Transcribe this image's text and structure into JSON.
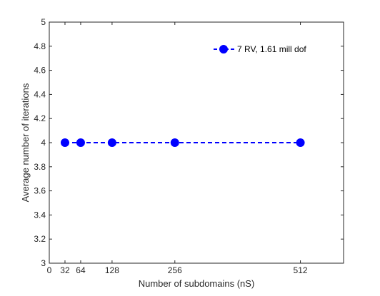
{
  "chart_data": {
    "type": "line",
    "xlabel": "Number of subdomains (nS)",
    "ylabel": "Average number of iterations",
    "xlim": [
      0,
      600
    ],
    "ylim": [
      3,
      5
    ],
    "x_ticks": [
      0,
      32,
      64,
      128,
      256,
      512
    ],
    "x_tick_labels": [
      "0",
      "32",
      "64",
      "128",
      "256",
      "512"
    ],
    "y_ticks": [
      3,
      3.2,
      3.4,
      3.6,
      3.8,
      4,
      4.2,
      4.4,
      4.6,
      4.8,
      5
    ],
    "y_tick_labels": [
      "3",
      "3.2",
      "3.4",
      "3.6",
      "3.8",
      "4",
      "4.2",
      "4.4",
      "4.6",
      "4.8",
      "5"
    ],
    "grid": false,
    "legend_position": "top-right",
    "series": [
      {
        "name": "7 RV, 1.61 mill dof",
        "x": [
          32,
          64,
          128,
          256,
          512
        ],
        "y": [
          4,
          4,
          4,
          4,
          4
        ],
        "color": "#0000ff",
        "line_style": "dashed",
        "marker": "circle"
      }
    ]
  }
}
